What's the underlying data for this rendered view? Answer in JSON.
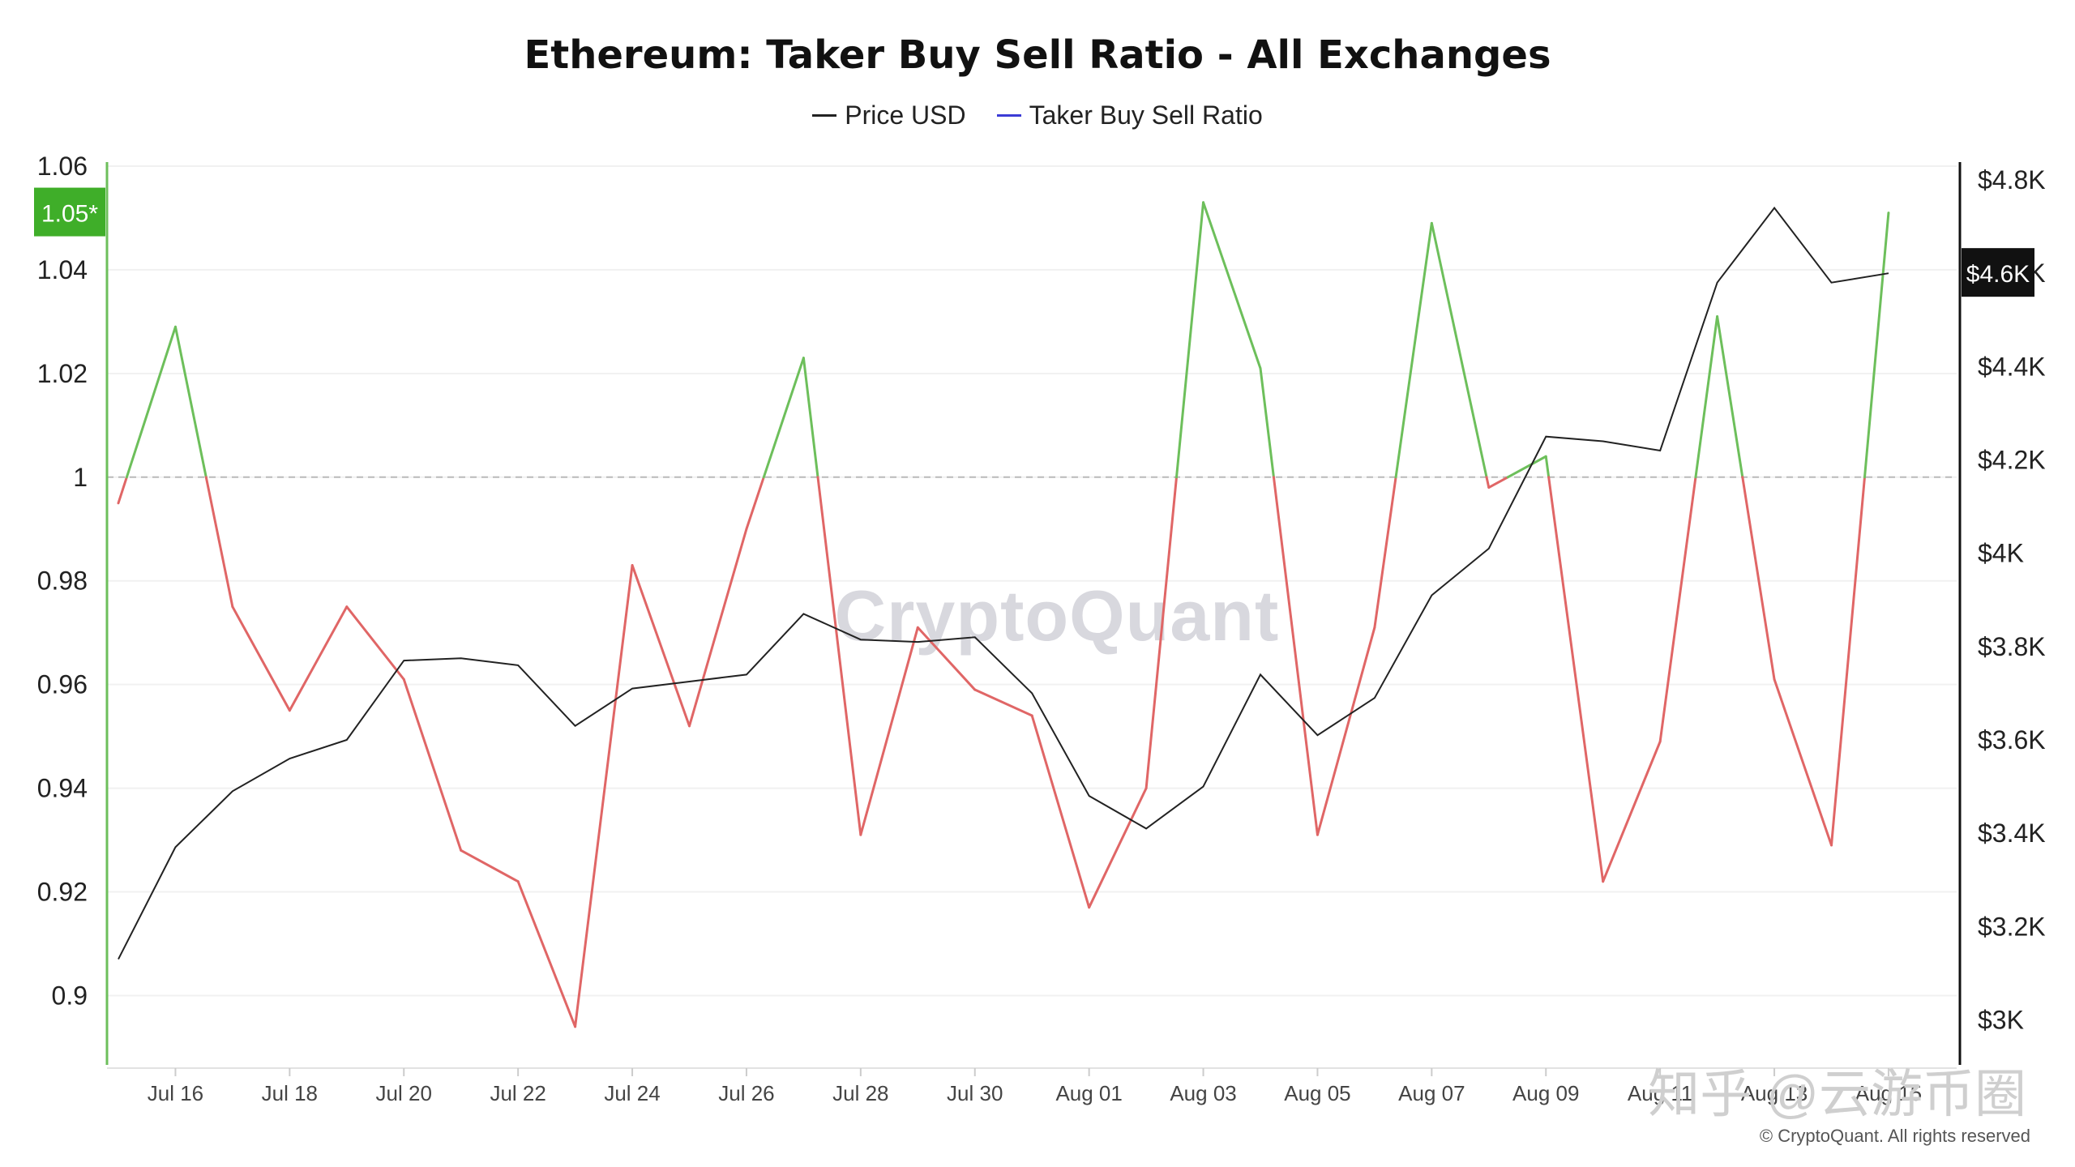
{
  "chart_data": {
    "type": "line",
    "title": "Ethereum: Taker Buy Sell Ratio - All Exchanges",
    "legend": [
      {
        "label": "Price USD",
        "color": "#222222"
      },
      {
        "label": "Taker Buy Sell Ratio",
        "color": "#3b3bd6"
      }
    ],
    "x": [
      "Jul 15",
      "Jul 16",
      "Jul 17",
      "Jul 18",
      "Jul 19",
      "Jul 20",
      "Jul 21",
      "Jul 22",
      "Jul 23",
      "Jul 24",
      "Jul 25",
      "Jul 26",
      "Jul 27",
      "Jul 28",
      "Jul 29",
      "Jul 30",
      "Jul 31",
      "Aug 01",
      "Aug 02",
      "Aug 03",
      "Aug 04",
      "Aug 05",
      "Aug 06",
      "Aug 07",
      "Aug 08",
      "Aug 09",
      "Aug 10",
      "Aug 11",
      "Aug 12",
      "Aug 13",
      "Aug 14",
      "Aug 15"
    ],
    "x_tick_labels": [
      "Jul 16",
      "Jul 18",
      "Jul 20",
      "Jul 22",
      "Jul 24",
      "Jul 26",
      "Jul 28",
      "Jul 30",
      "Aug 01",
      "Aug 03",
      "Aug 05",
      "Aug 07",
      "Aug 09",
      "Aug 11",
      "Aug 13",
      "Aug 15"
    ],
    "series": [
      {
        "name": "Taker Buy Sell Ratio",
        "axis": "left",
        "above_color": "#6dbf5b",
        "below_color": "#e06666",
        "baseline": 1,
        "values": [
          0.995,
          1.029,
          0.975,
          0.955,
          0.975,
          0.961,
          0.928,
          0.922,
          0.894,
          0.983,
          0.952,
          0.99,
          1.023,
          0.931,
          0.971,
          0.959,
          0.954,
          0.917,
          0.94,
          1.053,
          1.021,
          0.931,
          0.971,
          1.049,
          0.998,
          1.004,
          0.922,
          0.949,
          1.031,
          0.961,
          0.929,
          1.051
        ]
      },
      {
        "name": "Price USD",
        "axis": "right",
        "color": "#222222",
        "values": [
          3130,
          3370,
          3490,
          3560,
          3600,
          3770,
          3775,
          3760,
          3630,
          3710,
          3725,
          3740,
          3870,
          3815,
          3810,
          3820,
          3700,
          3480,
          3410,
          3500,
          3740,
          3610,
          3690,
          3910,
          4010,
          4250,
          4240,
          4220,
          4580,
          4740,
          4580,
          4600
        ]
      }
    ],
    "y_left": {
      "ticks": [
        "1.06",
        "1.04",
        "1.02",
        "1",
        "0.98",
        "0.96",
        "0.94",
        "0.92",
        "0.9"
      ],
      "range": [
        0.886,
        1.06
      ]
    },
    "y_right": {
      "ticks": [
        "$4.8K",
        "$4.6K",
        "$4.4K",
        "$4.2K",
        "$4K",
        "$3.8K",
        "$3.6K",
        "$3.4K",
        "$3.2K",
        "$3K"
      ],
      "range": [
        2980,
        4800
      ]
    },
    "current_ratio_label": "1.05*",
    "current_price_label": "$4.6K",
    "badge_colors": {
      "ratio": "#3fae29",
      "price": "#111111"
    }
  },
  "watermark": "CryptoQuant",
  "overlay_watermark": "知乎 @云游币圈",
  "copyright": "© CryptoQuant. All rights reserved"
}
